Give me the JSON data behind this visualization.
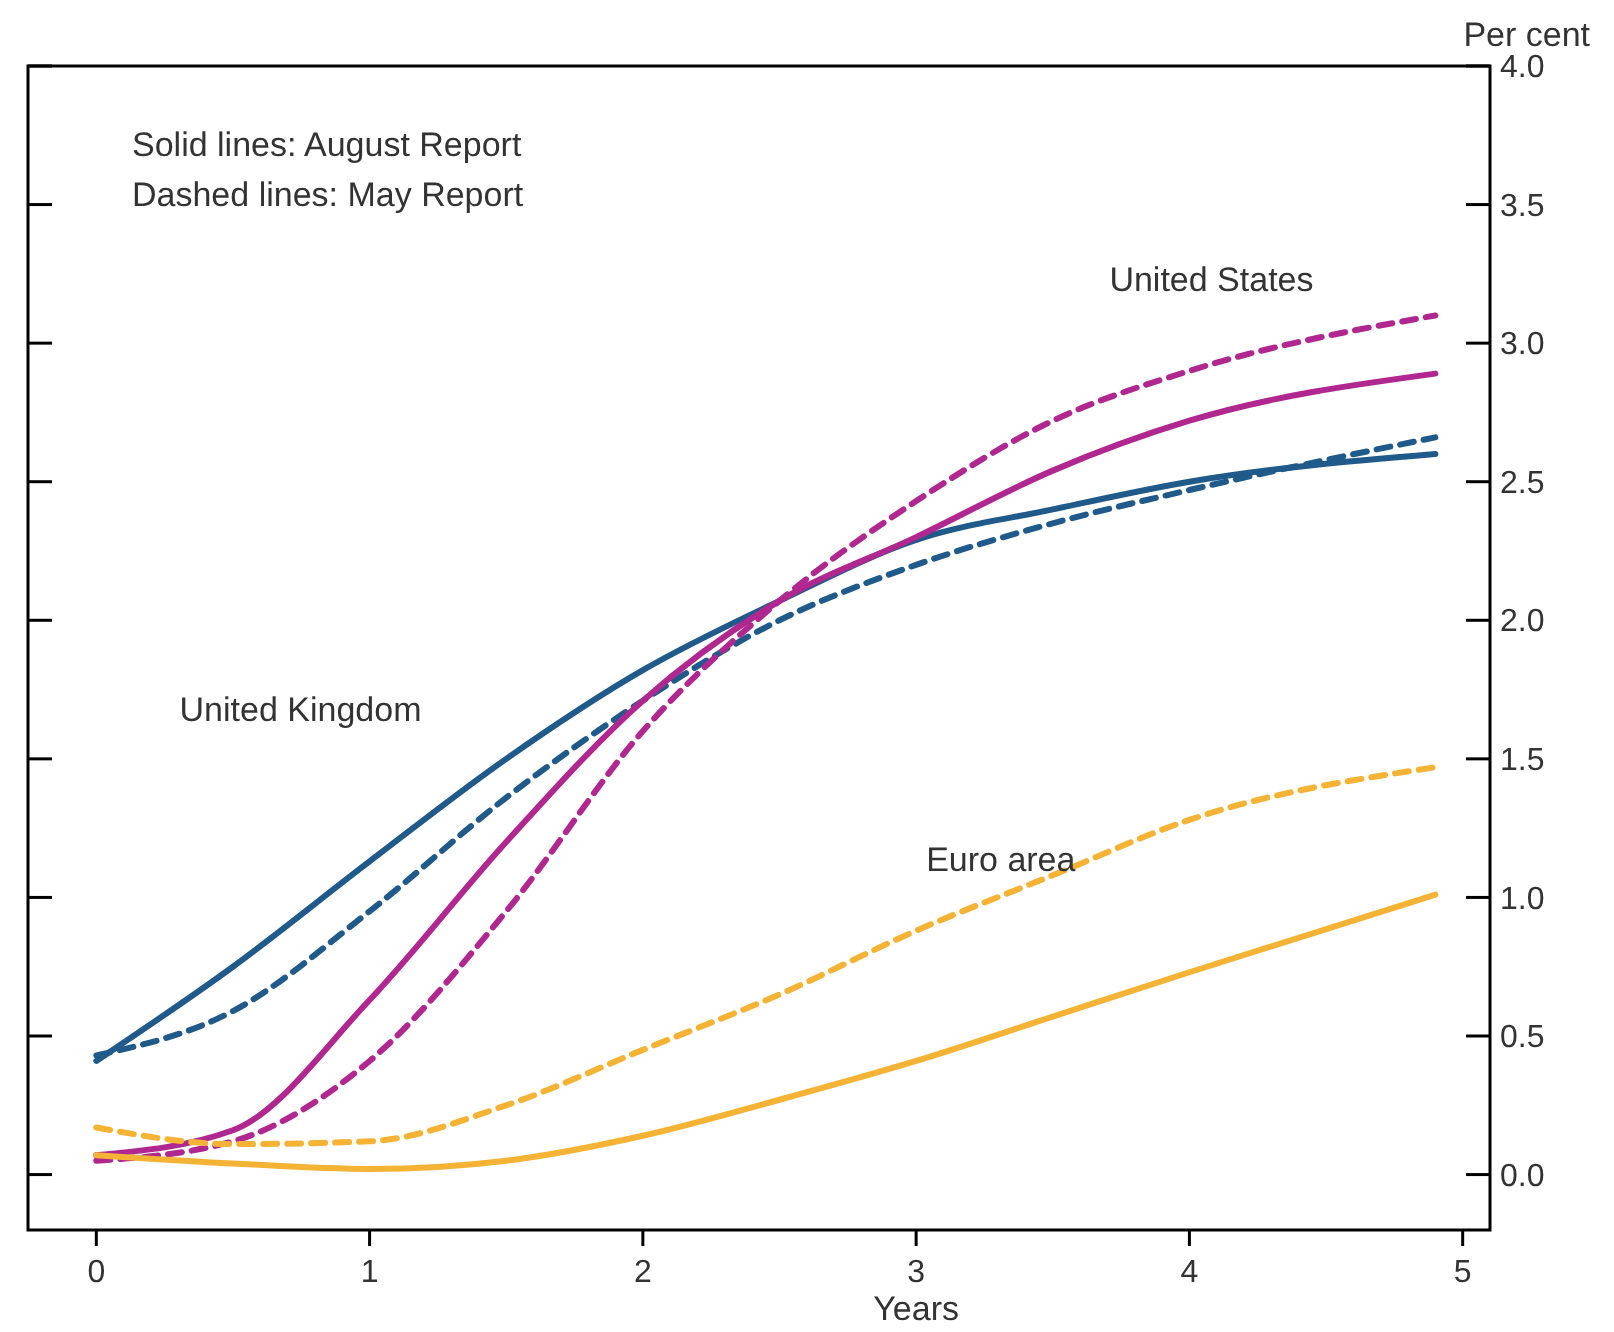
{
  "chart_data": {
    "type": "line",
    "xlabel": "Years",
    "ylabel": "Per cent",
    "annotations": [
      "Solid lines: August Report",
      "Dashed lines: May Report"
    ],
    "x": [
      0,
      0.5,
      1,
      1.5,
      2,
      2.5,
      3,
      3.5,
      4,
      4.9
    ],
    "xlim": [
      -0.25,
      5.1
    ],
    "xticks": [
      0,
      1,
      2,
      3,
      4,
      5
    ],
    "ylim": [
      -0.2,
      4.0
    ],
    "yticks": [
      {
        "value": 0,
        "label": "0.0"
      },
      {
        "value": 0.5,
        "label": "0.5"
      },
      {
        "value": 1,
        "label": "1.0"
      },
      {
        "value": 1.5,
        "label": "1.5"
      },
      {
        "value": 2,
        "label": "2.0"
      },
      {
        "value": 2.5,
        "label": "2.5"
      },
      {
        "value": 3,
        "label": "3.0"
      },
      {
        "value": 3.5,
        "label": "3.5"
      },
      {
        "value": 4,
        "label": "4.0"
      }
    ],
    "grid": false,
    "marker": "none",
    "series": [
      {
        "name": "United Kingdom",
        "color": "#1f5a8a",
        "line_style": "solid",
        "values": [
          0.41,
          0.75,
          1.13,
          1.5,
          1.82,
          2.07,
          2.29,
          2.4,
          2.5,
          2.6
        ]
      },
      {
        "color": "#1f5a8a",
        "line_style": "dashed",
        "values": [
          0.43,
          0.59,
          0.95,
          1.36,
          1.71,
          2.0,
          2.2,
          2.35,
          2.47,
          2.66
        ]
      },
      {
        "name": "United States",
        "color": "#b0278f",
        "line_style": "solid",
        "values": [
          0.07,
          0.16,
          0.63,
          1.2,
          1.71,
          2.07,
          2.3,
          2.54,
          2.72,
          2.89
        ]
      },
      {
        "color": "#b0278f",
        "line_style": "dashed",
        "values": [
          0.05,
          0.12,
          0.41,
          0.95,
          1.6,
          2.07,
          2.43,
          2.72,
          2.9,
          3.1
        ]
      },
      {
        "color": "#f5b335",
        "line_style": "solid",
        "values": [
          0.07,
          0.04,
          0.02,
          0.05,
          0.14,
          0.27,
          0.41,
          0.57,
          0.73,
          1.01
        ]
      },
      {
        "name": "Euro area",
        "color": "#f5b335",
        "line_style": "dashed",
        "values": [
          0.17,
          0.11,
          0.12,
          0.25,
          0.45,
          0.65,
          0.88,
          1.08,
          1.28,
          1.47
        ]
      }
    ]
  }
}
